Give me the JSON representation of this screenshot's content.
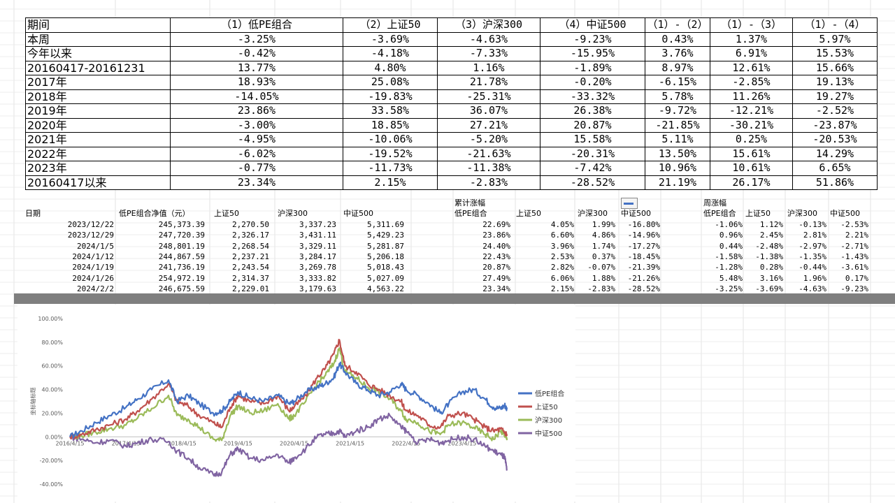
{
  "summary_table": {
    "header": [
      "期间",
      "（1）低PE组合",
      "（2）上证50",
      "（3）沪深300",
      "（4）中证500",
      "（1）-（2）",
      "（1）-（3）",
      "（1）-（4）"
    ],
    "rows": [
      [
        "本周",
        "-3.25%",
        "-3.69%",
        "-4.63%",
        "-9.23%",
        "0.43%",
        "1.37%",
        "5.97%"
      ],
      [
        "今年以来",
        "-0.42%",
        "-4.18%",
        "-7.33%",
        "-15.95%",
        "3.76%",
        "6.91%",
        "15.53%"
      ],
      [
        "20160417-20161231",
        "13.77%",
        "4.80%",
        "1.16%",
        "-1.89%",
        "8.97%",
        "12.61%",
        "15.66%"
      ],
      [
        "2017年",
        "18.93%",
        "25.08%",
        "21.78%",
        "-0.20%",
        "-6.15%",
        "-2.85%",
        "19.13%"
      ],
      [
        "2018年",
        "-14.05%",
        "-19.83%",
        "-25.31%",
        "-33.32%",
        "5.78%",
        "11.26%",
        "19.27%"
      ],
      [
        "2019年",
        "23.86%",
        "33.58%",
        "36.07%",
        "26.38%",
        "-9.72%",
        "-12.21%",
        "-2.52%"
      ],
      [
        "2020年",
        "-3.00%",
        "18.85%",
        "27.21%",
        "20.87%",
        "-21.85%",
        "-30.21%",
        "-23.87%"
      ],
      [
        "2021年",
        "-4.95%",
        "-10.06%",
        "-5.20%",
        "15.58%",
        "5.11%",
        "0.25%",
        "-20.53%"
      ],
      [
        "2022年",
        "-6.02%",
        "-19.52%",
        "-21.63%",
        "-20.31%",
        "13.50%",
        "15.61%",
        "14.29%"
      ],
      [
        "2023年",
        "-0.77%",
        "-11.73%",
        "-11.38%",
        "-7.42%",
        "10.96%",
        "10.61%",
        "6.65%"
      ],
      [
        "20160417以来",
        "23.34%",
        "2.15%",
        "-2.83%",
        "-28.52%",
        "21.19%",
        "26.17%",
        "51.86%"
      ]
    ]
  },
  "detail_table": {
    "group_label_cum": "累计涨幅",
    "group_label_week": "周涨幅",
    "header": [
      "日期",
      "低PE组合净值（元）",
      "上证50",
      "沪深300",
      "中证500",
      "低PE组合",
      "上证50",
      "沪深300",
      "中证500",
      "低PE组合",
      "上证50",
      "沪深300",
      "中证500"
    ],
    "rows": [
      [
        "2023/12/22",
        "245,373.39",
        "2,270.50",
        "3,337.23",
        "5,311.69",
        "22.69%",
        "4.05%",
        "1.99%",
        "-16.80%",
        "-1.06%",
        "1.12%",
        "-0.13%",
        "-2.53%"
      ],
      [
        "2023/12/29",
        "247,720.39",
        "2,326.17",
        "3,431.11",
        "5,429.23",
        "23.86%",
        "6.60%",
        "4.86%",
        "-14.96%",
        "0.96%",
        "2.45%",
        "2.81%",
        "2.21%"
      ],
      [
        "2024/1/5",
        "248,801.19",
        "2,268.54",
        "3,329.11",
        "5,281.87",
        "24.40%",
        "3.96%",
        "1.74%",
        "-17.27%",
        "0.44%",
        "-2.48%",
        "-2.97%",
        "-2.71%"
      ],
      [
        "2024/1/12",
        "244,867.59",
        "2,237.21",
        "3,284.17",
        "5,206.18",
        "22.43%",
        "2.53%",
        "0.37%",
        "-18.45%",
        "-1.58%",
        "-1.38%",
        "-1.35%",
        "-1.43%"
      ],
      [
        "2024/1/19",
        "241,736.19",
        "2,243.54",
        "3,269.78",
        "5,018.43",
        "20.87%",
        "2.82%",
        "-0.07%",
        "-21.39%",
        "-1.28%",
        "0.28%",
        "-0.44%",
        "-3.61%"
      ],
      [
        "2024/1/26",
        "254,972.19",
        "2,314.37",
        "3,333.82",
        "5,027.09",
        "27.49%",
        "6.06%",
        "1.88%",
        "-21.26%",
        "5.48%",
        "3.16%",
        "1.96%",
        "0.17%"
      ],
      [
        "2024/2/2",
        "246,675.59",
        "2,229.01",
        "3,179.63",
        "4,563.22",
        "23.34%",
        "2.15%",
        "-2.83%",
        "-28.52%",
        "-3.25%",
        "-3.69%",
        "-4.63%",
        "-9.23%"
      ]
    ]
  },
  "chart_data": {
    "type": "line",
    "ylabel": "坐标轴标题",
    "ylim": [
      -40,
      100
    ],
    "yticks": [
      "100.00%",
      "80.00%",
      "60.00%",
      "40.00%",
      "20.00%",
      "0.00%",
      "-20.00%",
      "-40.00%"
    ],
    "xticks": [
      "2016/4/15",
      "2017/4/15",
      "2018/4/15",
      "2019/4/15",
      "2020/4/15",
      "2021/4/15",
      "2022/4/15",
      "2023/4/15"
    ],
    "legend_position": "right",
    "series": [
      {
        "name": "低PE组合",
        "color": "#4472c4",
        "x": [
          2016.29,
          2016.5,
          2016.75,
          2017.0,
          2017.29,
          2017.5,
          2017.75,
          2018.05,
          2018.2,
          2018.4,
          2018.6,
          2018.85,
          2019.0,
          2019.15,
          2019.29,
          2019.5,
          2019.75,
          2020.0,
          2020.2,
          2020.29,
          2020.5,
          2020.7,
          2020.85,
          2021.0,
          2021.1,
          2021.2,
          2021.4,
          2021.6,
          2021.8,
          2022.0,
          2022.2,
          2022.29,
          2022.5,
          2022.7,
          2022.9,
          2023.05,
          2023.29,
          2023.5,
          2023.7,
          2023.85,
          2023.98,
          2024.05,
          2024.09
        ],
        "y": [
          0,
          5,
          12,
          18,
          25,
          32,
          40,
          48,
          30,
          35,
          28,
          20,
          22,
          30,
          38,
          33,
          30,
          35,
          28,
          30,
          38,
          42,
          45,
          50,
          62,
          55,
          45,
          40,
          35,
          38,
          45,
          40,
          35,
          28,
          20,
          28,
          38,
          40,
          32,
          25,
          24,
          27,
          23.34
        ]
      },
      {
        "name": "上证50",
        "color": "#c0504d",
        "x": [
          2016.29,
          2016.5,
          2016.75,
          2017.0,
          2017.29,
          2017.5,
          2017.75,
          2018.05,
          2018.2,
          2018.4,
          2018.6,
          2018.85,
          2019.0,
          2019.15,
          2019.29,
          2019.5,
          2019.75,
          2020.0,
          2020.2,
          2020.29,
          2020.5,
          2020.7,
          2020.85,
          2021.0,
          2021.1,
          2021.2,
          2021.4,
          2021.6,
          2021.8,
          2022.0,
          2022.2,
          2022.29,
          2022.5,
          2022.7,
          2022.9,
          2023.05,
          2023.29,
          2023.5,
          2023.7,
          2023.85,
          2023.98,
          2024.05,
          2024.09
        ],
        "y": [
          0,
          2,
          6,
          10,
          15,
          22,
          32,
          45,
          30,
          26,
          18,
          12,
          8,
          25,
          35,
          30,
          28,
          35,
          22,
          25,
          35,
          50,
          58,
          70,
          82,
          60,
          55,
          45,
          40,
          35,
          30,
          22,
          18,
          10,
          8,
          18,
          20,
          15,
          8,
          5,
          6.6,
          3.96,
          2.15
        ]
      },
      {
        "name": "沪深300",
        "color": "#9bbb59",
        "x": [
          2016.29,
          2016.5,
          2016.75,
          2017.0,
          2017.29,
          2017.5,
          2017.75,
          2018.05,
          2018.2,
          2018.4,
          2018.6,
          2018.85,
          2019.0,
          2019.15,
          2019.29,
          2019.5,
          2019.75,
          2020.0,
          2020.2,
          2020.29,
          2020.5,
          2020.7,
          2020.85,
          2021.0,
          2021.1,
          2021.2,
          2021.4,
          2021.6,
          2021.8,
          2022.0,
          2022.2,
          2022.29,
          2022.5,
          2022.7,
          2022.9,
          2023.05,
          2023.29,
          2023.5,
          2023.7,
          2023.85,
          2023.98,
          2024.05,
          2024.09
        ],
        "y": [
          0,
          1,
          4,
          7,
          10,
          16,
          24,
          35,
          18,
          15,
          8,
          -2,
          -3,
          18,
          26,
          20,
          22,
          28,
          15,
          18,
          30,
          45,
          52,
          62,
          75,
          55,
          50,
          42,
          38,
          32,
          22,
          15,
          12,
          5,
          2,
          10,
          12,
          8,
          2,
          -2,
          4.86,
          1.74,
          -2.83
        ]
      },
      {
        "name": "中证500",
        "color": "#8064a2",
        "x": [
          2016.29,
          2016.5,
          2016.75,
          2017.0,
          2017.29,
          2017.5,
          2017.75,
          2018.05,
          2018.2,
          2018.4,
          2018.6,
          2018.85,
          2019.0,
          2019.15,
          2019.29,
          2019.5,
          2019.75,
          2020.0,
          2020.2,
          2020.29,
          2020.5,
          2020.7,
          2020.85,
          2021.0,
          2021.1,
          2021.2,
          2021.4,
          2021.6,
          2021.8,
          2022.0,
          2022.2,
          2022.29,
          2022.5,
          2022.7,
          2022.9,
          2023.05,
          2023.29,
          2023.5,
          2023.7,
          2023.85,
          2023.98,
          2024.05,
          2024.09
        ],
        "y": [
          0,
          -2,
          -5,
          -3,
          -8,
          -5,
          -2,
          -4,
          -12,
          -18,
          -26,
          -32,
          -30,
          -15,
          -10,
          -18,
          -20,
          -15,
          -22,
          -18,
          -10,
          0,
          2,
          3,
          5,
          0,
          5,
          8,
          15,
          18,
          8,
          5,
          -5,
          -2,
          -5,
          -3,
          0,
          -2,
          -8,
          -12,
          -14.96,
          -17.27,
          -28.52
        ]
      }
    ]
  }
}
